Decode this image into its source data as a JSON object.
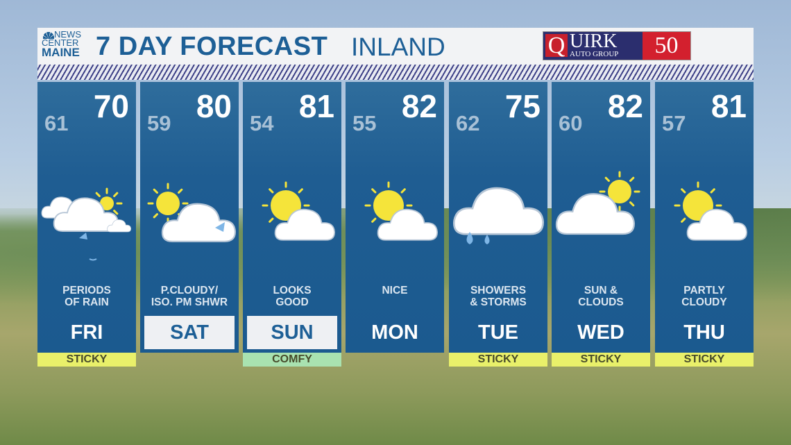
{
  "header": {
    "logo": [
      "NEWS",
      "CENTER",
      "MAINE"
    ],
    "title": "7 DAY FORECAST",
    "subtitle": "INLAND",
    "sponsor": {
      "letter": "Q",
      "name": "UIRK",
      "sub": "AUTO GROUP",
      "badge": "50"
    }
  },
  "colors": {
    "panel": "#1f5d92",
    "sticky": "#e9f06a",
    "comfy": "#a9e2b0",
    "title": "#1d5f96"
  },
  "days": [
    {
      "day": "FRI",
      "low": "61",
      "high": "70",
      "condition": [
        "PERIODS",
        "OF RAIN"
      ],
      "icon": "cloud-rain-sun-icon",
      "tag": "STICKY",
      "tag_type": "sticky",
      "highlight": false
    },
    {
      "day": "SAT",
      "low": "59",
      "high": "80",
      "condition": [
        "P.CLOUDY/",
        "ISO. PM SHWR"
      ],
      "icon": "sun-cloud-shower-icon",
      "tag": "",
      "tag_type": "",
      "highlight": true
    },
    {
      "day": "SUN",
      "low": "54",
      "high": "81",
      "condition": [
        "LOOKS",
        "GOOD"
      ],
      "icon": "sun-cloud-icon",
      "tag": "COMFY",
      "tag_type": "comfy",
      "highlight": true
    },
    {
      "day": "MON",
      "low": "55",
      "high": "82",
      "condition": [
        "NICE",
        ""
      ],
      "icon": "sun-cloud-icon",
      "tag": "",
      "tag_type": "",
      "highlight": false
    },
    {
      "day": "TUE",
      "low": "62",
      "high": "75",
      "condition": [
        "SHOWERS",
        "& STORMS"
      ],
      "icon": "cloud-rain-icon",
      "tag": "STICKY",
      "tag_type": "sticky",
      "highlight": false
    },
    {
      "day": "WED",
      "low": "60",
      "high": "82",
      "condition": [
        "SUN &",
        "CLOUDS"
      ],
      "icon": "cloud-sun-icon",
      "tag": "STICKY",
      "tag_type": "sticky",
      "highlight": false
    },
    {
      "day": "THU",
      "low": "57",
      "high": "81",
      "condition": [
        "PARTLY",
        "CLOUDY"
      ],
      "icon": "sun-cloud-icon",
      "tag": "STICKY",
      "tag_type": "sticky",
      "highlight": false
    }
  ]
}
